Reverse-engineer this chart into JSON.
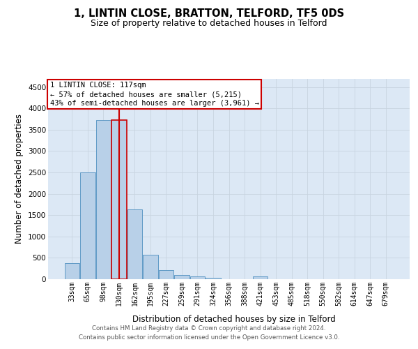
{
  "title": "1, LINTIN CLOSE, BRATTON, TELFORD, TF5 0DS",
  "subtitle": "Size of property relative to detached houses in Telford",
  "xlabel": "Distribution of detached houses by size in Telford",
  "ylabel": "Number of detached properties",
  "footer_line1": "Contains HM Land Registry data © Crown copyright and database right 2024.",
  "footer_line2": "Contains public sector information licensed under the Open Government Licence v3.0.",
  "categories": [
    "33sqm",
    "65sqm",
    "98sqm",
    "130sqm",
    "162sqm",
    "195sqm",
    "227sqm",
    "259sqm",
    "291sqm",
    "324sqm",
    "356sqm",
    "388sqm",
    "421sqm",
    "453sqm",
    "485sqm",
    "518sqm",
    "550sqm",
    "582sqm",
    "614sqm",
    "647sqm",
    "679sqm"
  ],
  "values": [
    370,
    2500,
    3720,
    3720,
    1630,
    580,
    220,
    105,
    60,
    40,
    0,
    0,
    60,
    0,
    0,
    0,
    0,
    0,
    0,
    0,
    0
  ],
  "bar_color": "#b8d0e8",
  "bar_edge_color": "#5090c0",
  "highlight_bar_index": 3,
  "vline_color": "#cc0000",
  "ylim": [
    0,
    4700
  ],
  "yticks": [
    0,
    500,
    1000,
    1500,
    2000,
    2500,
    3000,
    3500,
    4000,
    4500
  ],
  "annotation_line1": "1 LINTIN CLOSE: 117sqm",
  "annotation_line2": "← 57% of detached houses are smaller (5,215)",
  "annotation_line3": "43% of semi-detached houses are larger (3,961) →",
  "annotation_box_color": "#cc0000",
  "grid_color": "#c8d4e0",
  "background_color": "#dce8f5",
  "title_fontsize": 10.5,
  "subtitle_fontsize": 9,
  "tick_fontsize": 7,
  "ylabel_fontsize": 8.5,
  "xlabel_fontsize": 8.5,
  "footer_fontsize": 6.2,
  "ann_fontsize": 7.5
}
